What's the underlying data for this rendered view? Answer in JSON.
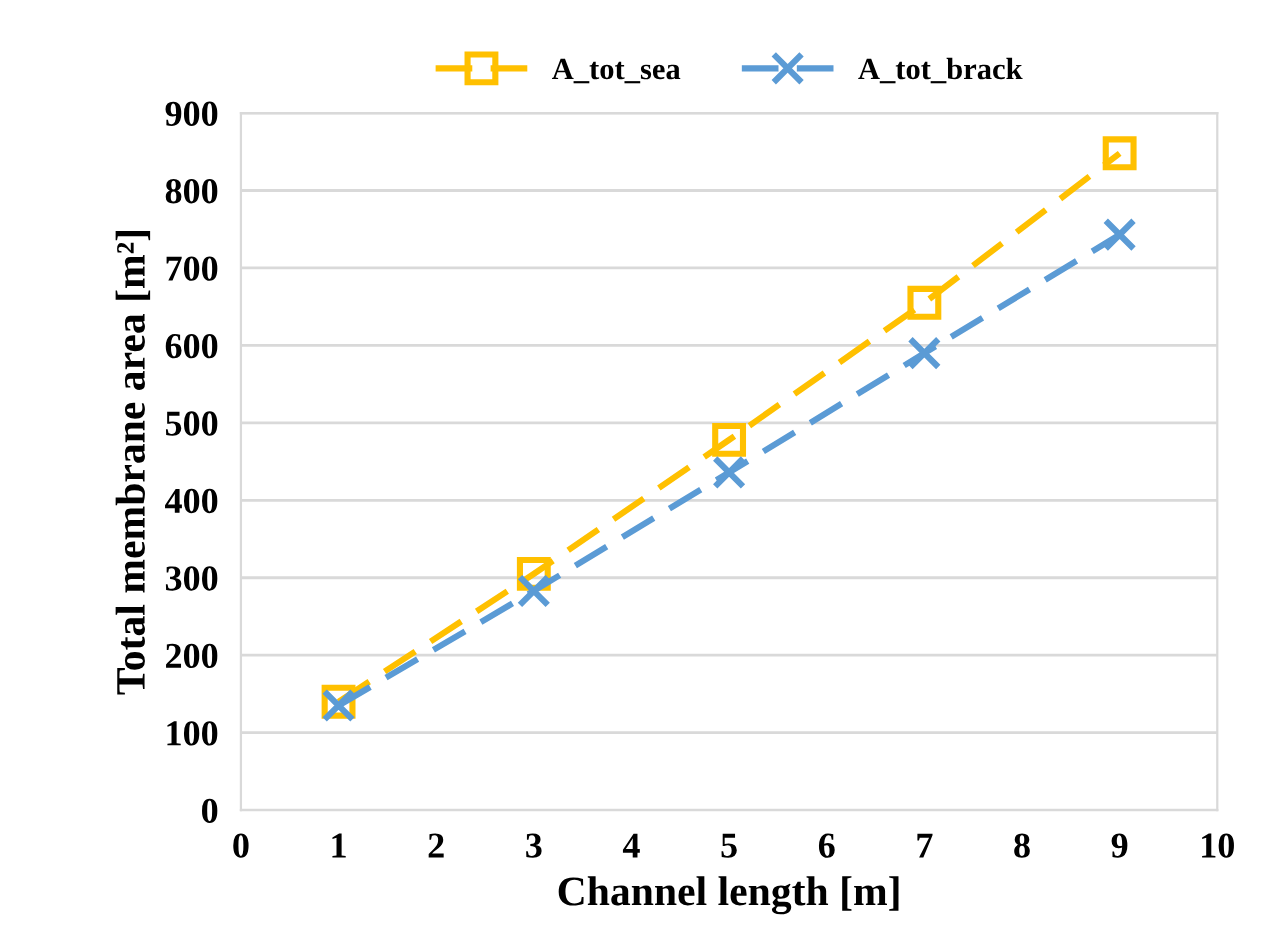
{
  "chart_data": {
    "type": "line",
    "xlabel": "Channel length [m]",
    "ylabel": "Total membrane area [m²]",
    "x": [
      1,
      3,
      5,
      7,
      9
    ],
    "series": [
      {
        "name": "A_tot_sea",
        "color": "#ffc000",
        "values": [
          140,
          305,
          478,
          655,
          848
        ],
        "marker": "square"
      },
      {
        "name": "A_tot_brack",
        "color": "#5b9bd5",
        "values": [
          135,
          283,
          436,
          590,
          743
        ],
        "marker": "cross"
      }
    ],
    "xlim": [
      0,
      10
    ],
    "xticks": [
      0,
      1,
      2,
      3,
      4,
      5,
      6,
      7,
      8,
      9,
      10
    ],
    "ylim": [
      0,
      900
    ],
    "yticks": [
      0,
      100,
      200,
      300,
      400,
      500,
      600,
      700,
      800,
      900
    ],
    "grid": "y",
    "legend": "top",
    "line_style": "dashed"
  }
}
